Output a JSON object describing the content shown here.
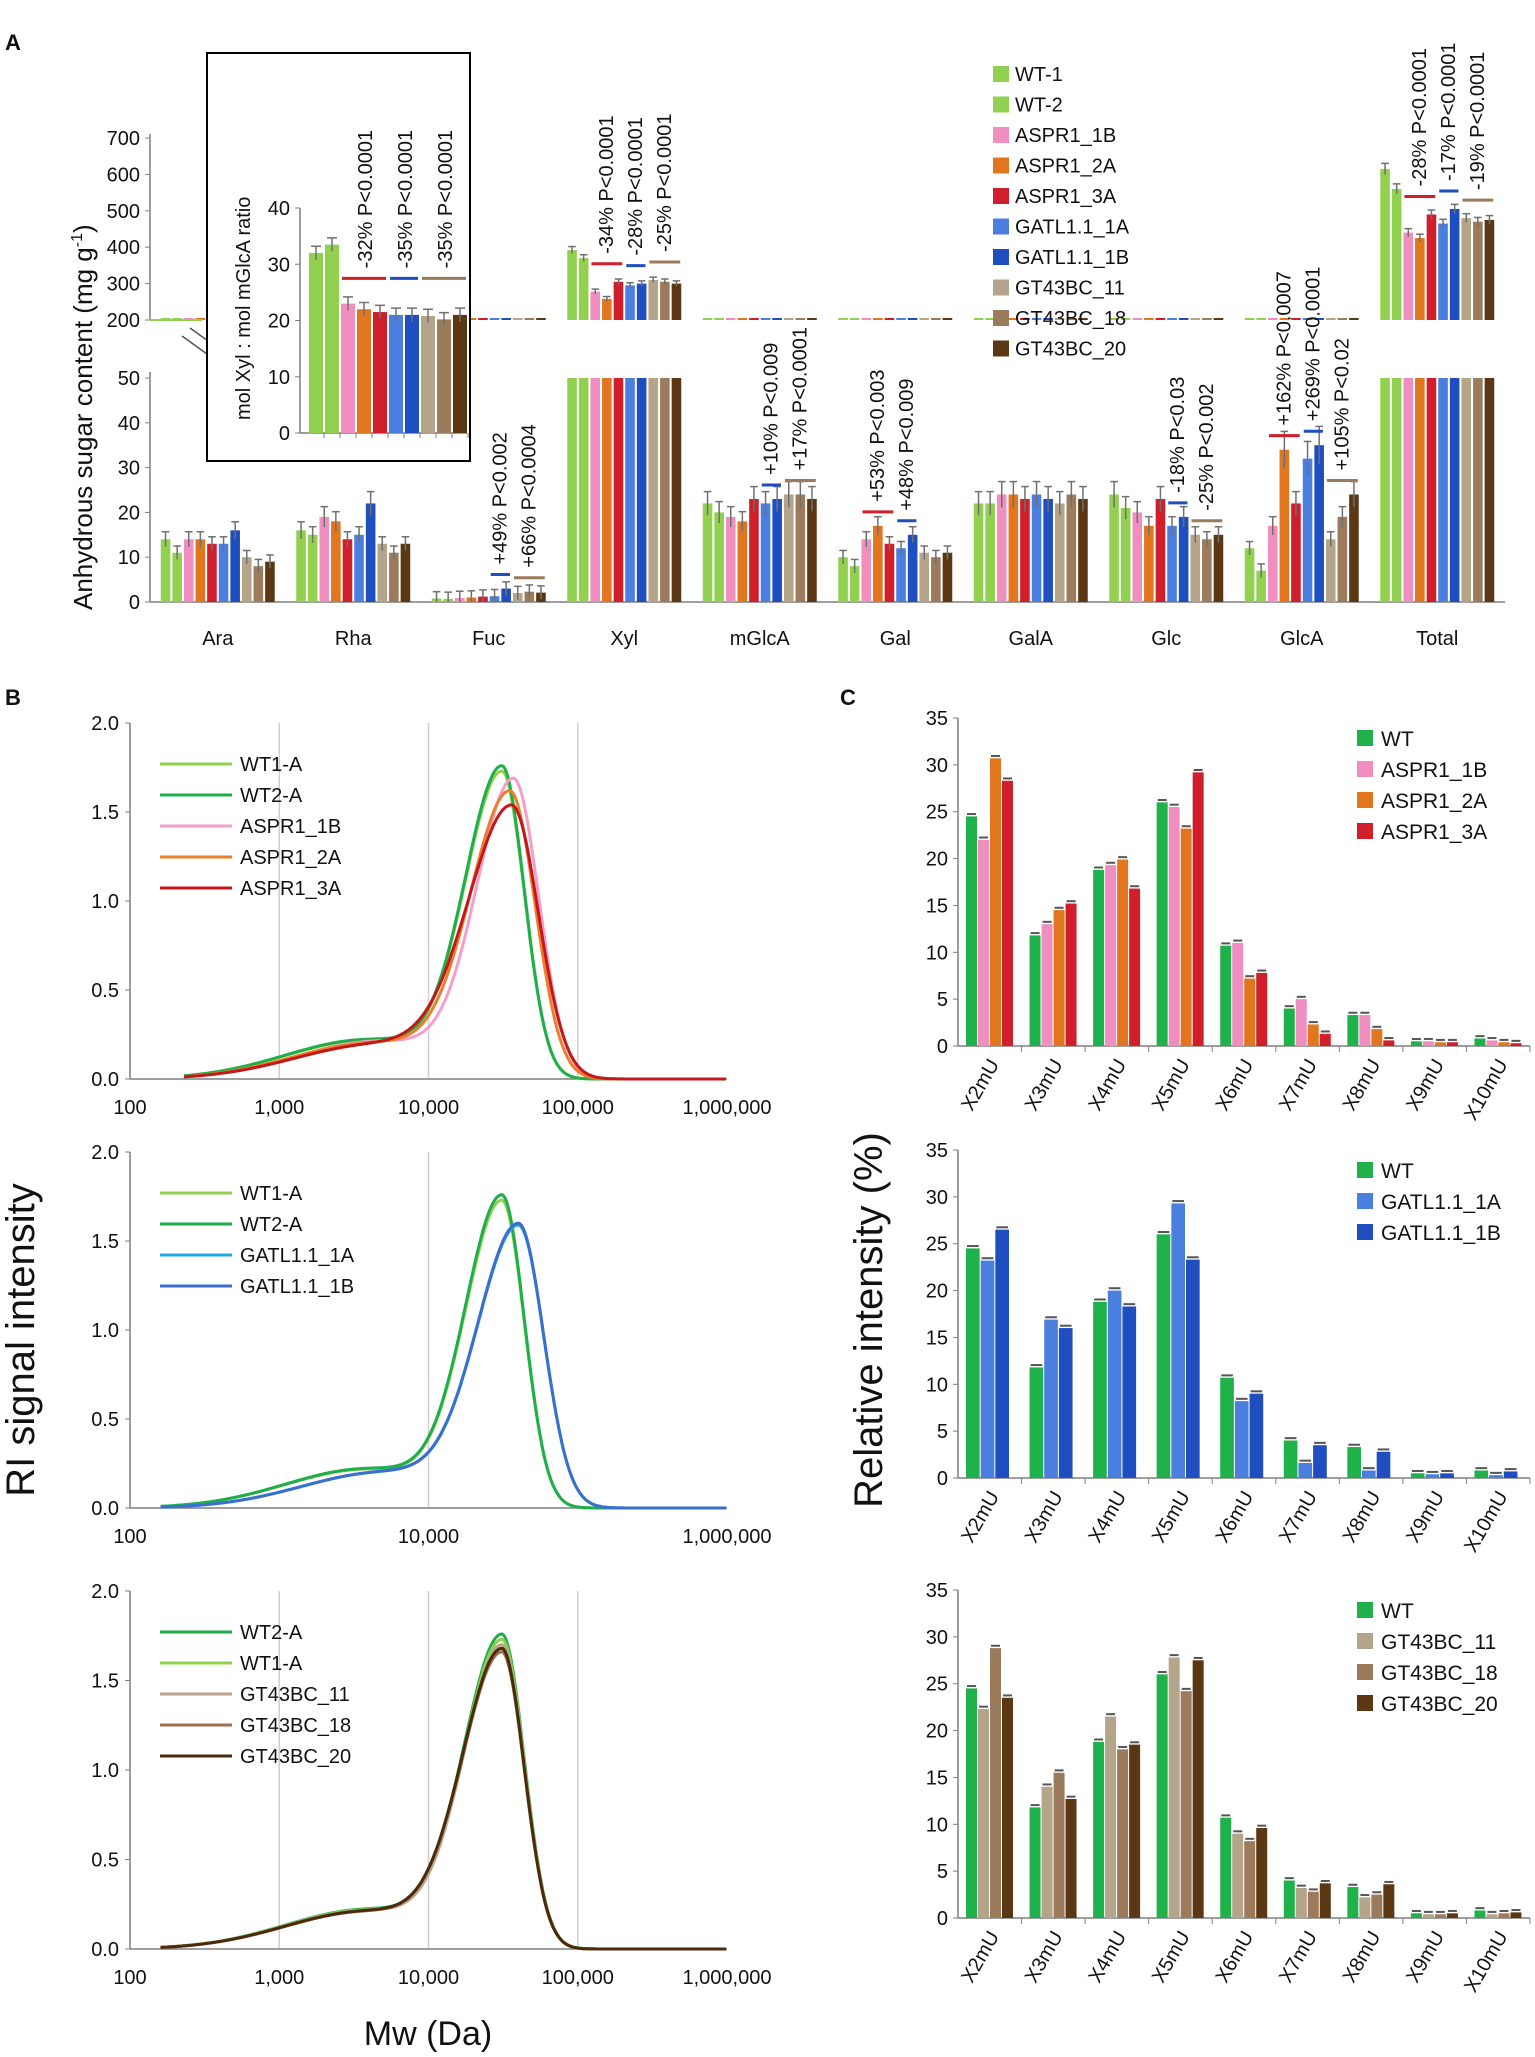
{
  "panels": {
    "a": "A",
    "b": "B",
    "c": "C"
  },
  "colors": {
    "WT-1": "#92d050",
    "WT-2": "#92d050",
    "ASPR1_1B": "#f08fbf",
    "ASPR1_2A": "#e2761f",
    "ASPR1_3A": "#d01f2a",
    "GATL1.1_1A": "#4a7fe0",
    "GATL1.1_1B": "#1e4ec0",
    "GT43BC_11": "#b3a48a",
    "GT43BC_18": "#9c7b5d",
    "GT43BC_20": "#5b3813",
    "WT": "#1fb24a",
    "WT1-A": "#8fd14f",
    "WT2-A": "#1fae4c"
  },
  "chart_data": [
    {
      "id": "A",
      "type": "bar",
      "title": "",
      "ylabel_main": "Anhydrous sugar content (mg g",
      "ylabel_sup": "-1",
      "ylabel_end": ")",
      "ylim_lower": [
        0,
        50
      ],
      "ylim_upper": [
        200,
        700
      ],
      "yticks_lower": [
        "0",
        "10",
        "20",
        "30",
        "40",
        "50"
      ],
      "yticks_upper": [
        "200",
        "300",
        "400",
        "500",
        "600",
        "700"
      ],
      "categories": [
        "Ara",
        "Rha",
        "Fuc",
        "Xyl",
        "mGlcA",
        "Gal",
        "GalA",
        "Glc",
        "GlcA",
        "Total"
      ],
      "legend": [
        "WT-1",
        "WT-2",
        "ASPR1_1B",
        "ASPR1_2A",
        "ASPR1_3A",
        "GATL1.1_1A",
        "GATL1.1_1B",
        "GT43BC_11",
        "GT43BC_18",
        "GT43BC_20"
      ],
      "series": [
        {
          "name": "WT-1",
          "values": [
            14,
            16,
            0.8,
            392,
            22,
            10,
            22,
            24,
            12,
            615
          ]
        },
        {
          "name": "WT-2",
          "values": [
            11,
            15,
            0.7,
            370,
            20,
            8,
            22,
            21,
            7,
            560
          ]
        },
        {
          "name": "ASPR1_1B",
          "values": [
            14,
            19,
            0.9,
            278,
            19,
            14,
            24,
            20,
            17,
            440
          ]
        },
        {
          "name": "ASPR1_2A",
          "values": [
            14,
            18,
            1.0,
            258,
            18,
            17,
            24,
            17,
            34,
            425
          ]
        },
        {
          "name": "ASPR1_3A",
          "values": [
            13,
            14,
            1.2,
            305,
            23,
            13,
            23,
            23,
            22,
            490
          ]
        },
        {
          "name": "GATL1.1_1A",
          "values": [
            13,
            15,
            1.3,
            295,
            22,
            12,
            24,
            17,
            32,
            465
          ]
        },
        {
          "name": "GATL1.1_1B",
          "values": [
            16,
            22,
            3.0,
            300,
            23,
            15,
            23,
            19,
            35,
            505
          ]
        },
        {
          "name": "GT43BC_11",
          "values": [
            10,
            13,
            2.0,
            310,
            24,
            11,
            22,
            15,
            14,
            480
          ]
        },
        {
          "name": "GT43BC_18",
          "values": [
            8,
            11,
            2.3,
            305,
            24,
            10,
            24,
            14,
            19,
            470
          ]
        },
        {
          "name": "GT43BC_20",
          "values": [
            9,
            13,
            2.1,
            300,
            23,
            11,
            23,
            15,
            24,
            475
          ]
        }
      ],
      "annotations": [
        {
          "category": "Fuc",
          "lines": [
            "+49% P<0.002",
            "+66% P<0.0004"
          ]
        },
        {
          "category": "Xyl",
          "lines": [
            "-34% P<0.0001",
            "-28% P<0.0001",
            "-25% P<0.0001"
          ]
        },
        {
          "category": "mGlcA",
          "lines": [
            "+10% P<0.009",
            "+17% P<0.0001"
          ]
        },
        {
          "category": "Gal",
          "lines": [
            "+53% P<0.003",
            "+48% P<0.009"
          ]
        },
        {
          "category": "Glc",
          "lines": [
            "-18% P<0.03",
            "-25% P<0.002"
          ]
        },
        {
          "category": "GlcA",
          "lines": [
            "+162% P<0.0007",
            "+269% P<0.0001",
            "+105% P<0.02"
          ]
        },
        {
          "category": "Total",
          "lines": [
            "-28% P<0.0001",
            "-17% P<0.0001",
            "-19% P<0.0001"
          ]
        }
      ],
      "inset": {
        "ylabel": "mol Xyl : mol mGlcA ratio",
        "ylim": [
          0,
          40
        ],
        "yticks": [
          "0",
          "10",
          "20",
          "30",
          "40"
        ],
        "values": [
          32,
          33.5,
          23,
          22,
          21.5,
          21,
          21,
          20.8,
          20.2,
          21
        ],
        "annotations": [
          "-32% P<0.0001",
          "-35% P<0.0001",
          "-35% P<0.0001"
        ]
      }
    },
    {
      "id": "B",
      "type": "line",
      "ylabel": "RI signal intensity",
      "xlabel": "Mw (Da)",
      "xlim": [
        100,
        1000000
      ],
      "ylim": [
        0,
        2.0
      ],
      "yticks": [
        "0.0",
        "0.5",
        "1.0",
        "1.5",
        "2.0"
      ],
      "subplots": [
        {
          "xticks": [
            "100",
            "1,000",
            "10,000",
            "100,000",
            "1,000,000"
          ],
          "series": [
            {
              "name": "WT1-A",
              "peak_mw": 31000,
              "height": 1.73,
              "left_sd": 0.25,
              "right_sd": 0.15
            },
            {
              "name": "WT2-A",
              "peak_mw": 31000,
              "height": 1.76,
              "left_sd": 0.25,
              "right_sd": 0.15
            },
            {
              "name": "ASPR1_1B",
              "peak_mw": 37000,
              "height": 1.69,
              "left_sd": 0.25,
              "right_sd": 0.17
            },
            {
              "name": "ASPR1_2A",
              "peak_mw": 35000,
              "height": 1.62,
              "left_sd": 0.27,
              "right_sd": 0.17
            },
            {
              "name": "ASPR1_3A",
              "peak_mw": 36000,
              "height": 1.54,
              "left_sd": 0.3,
              "right_sd": 0.18
            }
          ]
        },
        {
          "xticks": [
            "100",
            "10,000",
            "1,000,000"
          ],
          "series": [
            {
              "name": "WT1-A",
              "peak_mw": 31000,
              "height": 1.73,
              "left_sd": 0.25,
              "right_sd": 0.15
            },
            {
              "name": "WT2-A",
              "peak_mw": 31000,
              "height": 1.76,
              "left_sd": 0.25,
              "right_sd": 0.15
            },
            {
              "name": "GATL1.1_1A",
              "peak_mw": 40000,
              "height": 1.59,
              "left_sd": 0.28,
              "right_sd": 0.17
            },
            {
              "name": "GATL1.1_1B",
              "peak_mw": 40000,
              "height": 1.6,
              "left_sd": 0.28,
              "right_sd": 0.17
            }
          ]
        },
        {
          "xticks": [
            "100",
            "1,000",
            "10,000",
            "100,000",
            "1,000,000"
          ],
          "series": [
            {
              "name": "WT2-A",
              "peak_mw": 31000,
              "height": 1.76,
              "left_sd": 0.26,
              "right_sd": 0.15
            },
            {
              "name": "WT1-A",
              "peak_mw": 31000,
              "height": 1.73,
              "left_sd": 0.26,
              "right_sd": 0.15
            },
            {
              "name": "GT43BC_11",
              "peak_mw": 31000,
              "height": 1.7,
              "left_sd": 0.26,
              "right_sd": 0.15
            },
            {
              "name": "GT43BC_18",
              "peak_mw": 31000,
              "height": 1.66,
              "left_sd": 0.27,
              "right_sd": 0.15
            },
            {
              "name": "GT43BC_20",
              "peak_mw": 31000,
              "height": 1.68,
              "left_sd": 0.27,
              "right_sd": 0.15
            }
          ]
        }
      ]
    },
    {
      "id": "C",
      "type": "bar",
      "ylabel": "Relative intensity (%)",
      "ylim": [
        0,
        35
      ],
      "yticks": [
        "0",
        "5",
        "10",
        "15",
        "20",
        "25",
        "30",
        "35"
      ],
      "categories": [
        "X2mU",
        "X3mU",
        "X4mU",
        "X5mU",
        "X6mU",
        "X7mU",
        "X8mU",
        "X9mU",
        "X10mU"
      ],
      "subplots": [
        {
          "series": [
            {
              "name": "WT",
              "values": [
                24.5,
                11.8,
                18.8,
                26,
                10.7,
                4,
                3.3,
                0.5,
                0.8
              ]
            },
            {
              "name": "ASPR1_1B",
              "values": [
                22,
                13,
                19.3,
                25.5,
                11,
                5,
                3.3,
                0.5,
                0.6
              ]
            },
            {
              "name": "ASPR1_2A",
              "values": [
                30.7,
                14.5,
                19.9,
                23.2,
                7.2,
                2.3,
                1.8,
                0.4,
                0.4
              ]
            },
            {
              "name": "ASPR1_3A",
              "values": [
                28.3,
                15.2,
                16.8,
                29.2,
                7.8,
                1.3,
                0.6,
                0.4,
                0.3
              ]
            }
          ]
        },
        {
          "series": [
            {
              "name": "WT",
              "values": [
                24.5,
                11.8,
                18.8,
                26,
                10.7,
                4,
                3.3,
                0.5,
                0.8
              ]
            },
            {
              "name": "GATL1.1_1A",
              "values": [
                23.2,
                16.9,
                20,
                29.3,
                8.2,
                1.6,
                0.8,
                0.4,
                0.3
              ]
            },
            {
              "name": "GATL1.1_1B",
              "values": [
                26.5,
                16,
                18.3,
                23.3,
                9,
                3.5,
                2.8,
                0.5,
                0.7
              ]
            }
          ]
        },
        {
          "series": [
            {
              "name": "WT",
              "values": [
                24.5,
                11.8,
                18.8,
                26,
                10.7,
                4,
                3.3,
                0.5,
                0.8
              ]
            },
            {
              "name": "GT43BC_11",
              "values": [
                22.3,
                14,
                21.5,
                27.8,
                9,
                3.2,
                2.2,
                0.4,
                0.4
              ]
            },
            {
              "name": "GT43BC_18",
              "values": [
                28.8,
                15.5,
                18,
                24.2,
                8.2,
                2.8,
                2.5,
                0.4,
                0.5
              ]
            },
            {
              "name": "GT43BC_20",
              "values": [
                23.5,
                12.7,
                18.5,
                27.5,
                9.6,
                3.7,
                3.6,
                0.5,
                0.6
              ]
            }
          ]
        }
      ]
    }
  ]
}
